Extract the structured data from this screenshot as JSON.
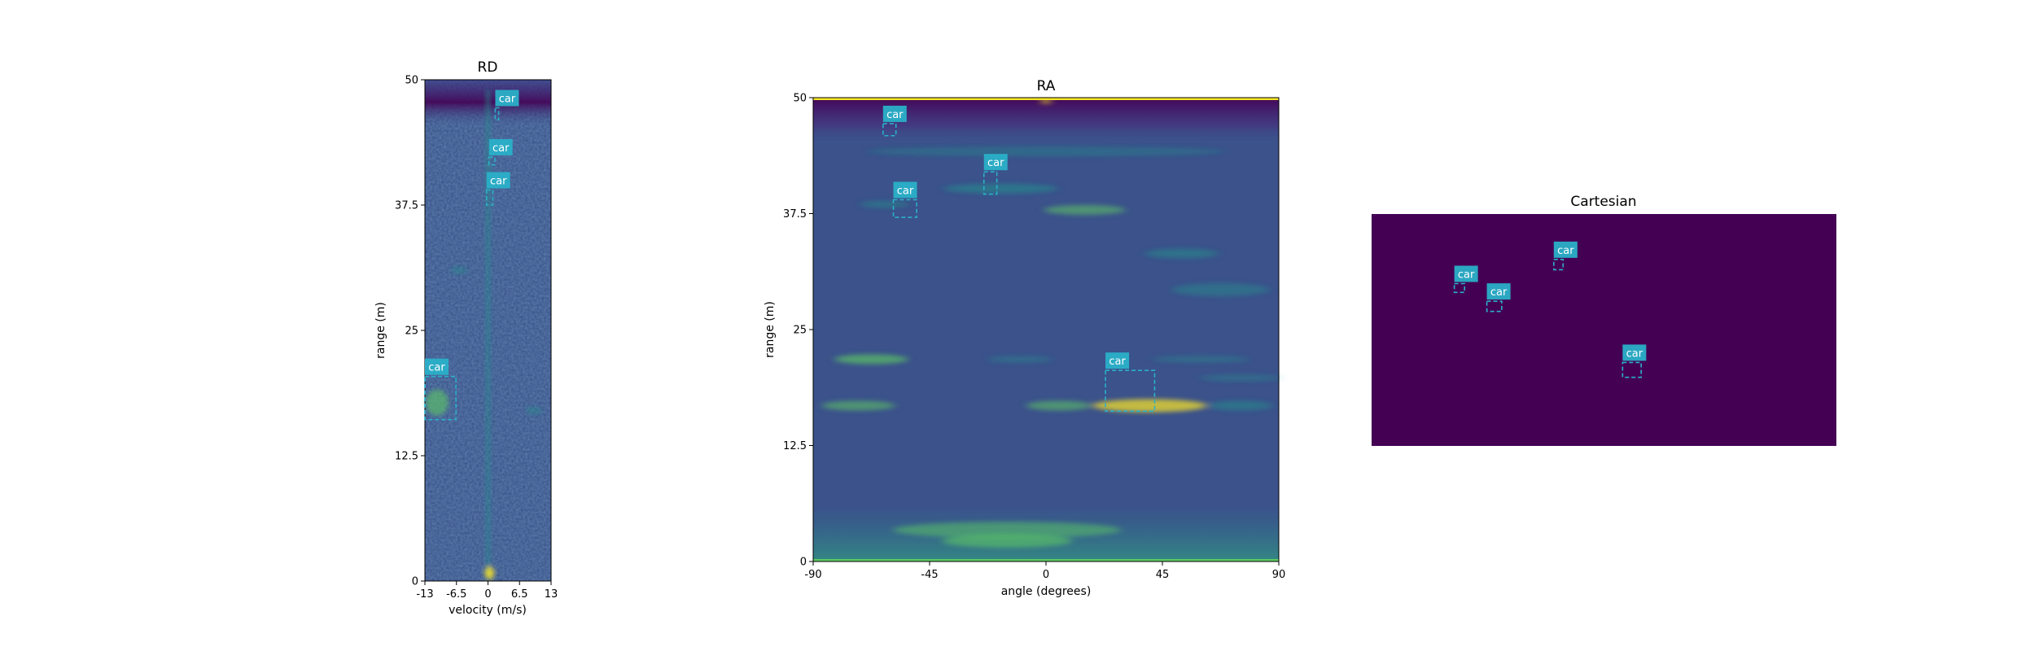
{
  "colors": {
    "heat_low": "#440154",
    "heat_bg": "#3b528b",
    "heat_mid": "#21918c",
    "heat_high": "#5ec962",
    "heat_peak": "#fde725",
    "box": "#2ab0c8",
    "cartesian_bg": "#440154"
  },
  "chart_data": [
    {
      "type": "heatmap",
      "title": "RD",
      "xlabel": "velocity (m/s)",
      "ylabel": "range (m)",
      "xlim": [
        -13,
        13
      ],
      "ylim": [
        0,
        50
      ],
      "xticks": [
        "-13",
        "-6.5",
        "0",
        "6.5",
        "13"
      ],
      "yticks": [
        "0",
        "12.5",
        "25",
        "37.5",
        "50"
      ],
      "detections": [
        {
          "label": "car",
          "x0": 1.5,
          "x1": 2.2,
          "y0": 46.0,
          "y1": 47.2
        },
        {
          "label": "car",
          "x0": 0.2,
          "x1": 1.4,
          "y0": 41.5,
          "y1": 42.3
        },
        {
          "label": "car",
          "x0": -0.3,
          "x1": 1.0,
          "y0": 37.5,
          "y1": 39.0
        },
        {
          "label": "car",
          "x0": -13.0,
          "x1": -6.6,
          "y0": 16.1,
          "y1": 20.4
        }
      ]
    },
    {
      "type": "heatmap",
      "title": "RA",
      "xlabel": "angle (degrees)",
      "ylabel": "range (m)",
      "xlim": [
        -90,
        90
      ],
      "ylim": [
        0,
        50
      ],
      "xticks": [
        "-90",
        "-45",
        "0",
        "45",
        "90"
      ],
      "yticks": [
        "0",
        "12.5",
        "25",
        "37.5",
        "50"
      ],
      "detections": [
        {
          "label": "car",
          "x0": -63,
          "x1": -58,
          "y0": 45.9,
          "y1": 47.2
        },
        {
          "label": "car",
          "x0": -24,
          "x1": -19,
          "y0": 39.6,
          "y1": 42.0
        },
        {
          "label": "car",
          "x0": -59,
          "x1": -50,
          "y0": 37.1,
          "y1": 39.0
        },
        {
          "label": "car",
          "x0": 23,
          "x1": 42,
          "y0": 16.2,
          "y1": 20.6
        }
      ]
    },
    {
      "type": "heatmap",
      "title": "Cartesian",
      "xlim": [
        0,
        100
      ],
      "ylim": [
        0,
        50
      ],
      "detections": [
        {
          "label": "car",
          "x0": 39.2,
          "x1": 41.2,
          "y0": 38.0,
          "y1": 40.2
        },
        {
          "label": "car",
          "x0": 17.8,
          "x1": 20.0,
          "y0": 33.1,
          "y1": 35.0
        },
        {
          "label": "car",
          "x0": 24.8,
          "x1": 28.0,
          "y0": 29.0,
          "y1": 31.2
        },
        {
          "label": "car",
          "x0": 54.0,
          "x1": 58.0,
          "y0": 14.8,
          "y1": 18.0
        }
      ]
    }
  ]
}
